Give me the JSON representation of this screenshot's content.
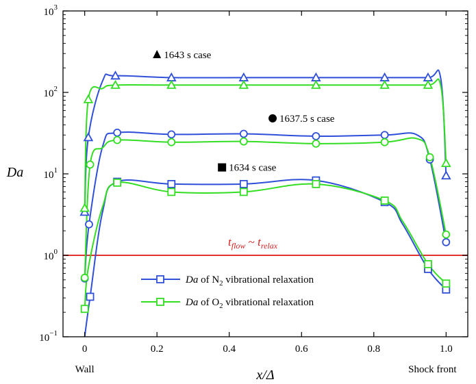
{
  "chart_data": {
    "type": "line",
    "xlabel": "x/Δ",
    "ylabel": "Da",
    "yscale": "log",
    "xlim": [
      -0.06,
      1.06
    ],
    "ylim": [
      0.1,
      1000
    ],
    "grid": false,
    "legend_position": "lower-center",
    "x_ticks": [
      {
        "value": 0.0,
        "label": "0"
      },
      {
        "value": 0.2,
        "label": "0.2"
      },
      {
        "value": 0.4,
        "label": "0.4"
      },
      {
        "value": 0.6,
        "label": "0.6"
      },
      {
        "value": 0.8,
        "label": "0.8"
      },
      {
        "value": 1.0,
        "label": "1.0"
      }
    ],
    "y_ticks": [
      {
        "value": 0.1,
        "base": "10",
        "exp": "−1"
      },
      {
        "value": 1,
        "base": "10",
        "exp": "0"
      },
      {
        "value": 10,
        "base": "10",
        "exp": "1"
      },
      {
        "value": 100,
        "base": "10",
        "exp": "2"
      },
      {
        "value": 1000,
        "base": "10",
        "exp": "3"
      }
    ],
    "x_end_labels": {
      "left": "Wall",
      "right": "Shock front"
    },
    "reference_line": {
      "y": 1.0,
      "label_main_1": "t",
      "label_sub_1": "flow",
      "label_mid": " ~ ",
      "label_main_2": "t",
      "label_sub_2": "relax",
      "color": "#e03030"
    },
    "legend": [
      {
        "label_pre": "Da",
        "label_mid": " of N",
        "label_sub": "2",
        "label_post": " vibrational relaxation",
        "color": "#2f4fd8",
        "marker": "square"
      },
      {
        "label_pre": "Da",
        "label_mid": " of O",
        "label_sub": "2",
        "label_post": " vibrational relaxation",
        "color": "#33dd22",
        "marker": "square"
      }
    ],
    "annotations": [
      {
        "text": "1643 s case",
        "symbol": "triangle",
        "x": 0.2,
        "y": 290
      },
      {
        "text": "1637.5 s case",
        "symbol": "circle",
        "x": 0.52,
        "y": 48
      },
      {
        "text": "1634 s case",
        "symbol": "square",
        "x": 0.38,
        "y": 12
      }
    ],
    "series": [
      {
        "species": "N2",
        "case": "1643 s",
        "color": "#2f4fd8",
        "marker": "triangle",
        "x": [
          0,
          0.01,
          0.05,
          0.085,
          0.24,
          0.44,
          0.64,
          0.83,
          0.95,
          0.985,
          1.0
        ],
        "y": [
          3.4,
          28,
          140,
          160,
          152,
          152,
          152,
          152,
          152,
          150,
          9.5
        ],
        "markers_x": [
          0,
          0.01,
          0.085,
          0.24,
          0.44,
          0.64,
          0.83,
          0.95,
          1.0
        ],
        "markers_y": [
          3.4,
          28,
          160,
          152,
          152,
          152,
          152,
          152,
          9.5
        ]
      },
      {
        "species": "O2",
        "case": "1643 s",
        "color": "#33dd22",
        "marker": "triangle",
        "x": [
          0,
          0.01,
          0.05,
          0.085,
          0.24,
          0.44,
          0.64,
          0.83,
          0.95,
          0.985,
          1.0
        ],
        "y": [
          3.8,
          82,
          112,
          123,
          123,
          123,
          123,
          123,
          123,
          122,
          13.5
        ],
        "markers_x": [
          0,
          0.01,
          0.085,
          0.24,
          0.44,
          0.64,
          0.83,
          0.95,
          1.0
        ],
        "markers_y": [
          3.8,
          82,
          123,
          123,
          123,
          123,
          123,
          123,
          13.5
        ]
      },
      {
        "species": "N2",
        "case": "1637.5 s",
        "color": "#2f4fd8",
        "marker": "circle",
        "x": [
          0,
          0.012,
          0.05,
          0.09,
          0.24,
          0.44,
          0.64,
          0.83,
          0.92,
          0.955,
          1.0
        ],
        "y": [
          0.52,
          2.4,
          22,
          32,
          30.5,
          31,
          29,
          30,
          30,
          15,
          1.45
        ],
        "markers_x": [
          0,
          0.012,
          0.09,
          0.24,
          0.44,
          0.64,
          0.83,
          0.955,
          1.0
        ],
        "markers_y": [
          0.52,
          2.4,
          32,
          30.5,
          31,
          29,
          30,
          15,
          1.45
        ]
      },
      {
        "species": "O2",
        "case": "1637.5 s",
        "color": "#33dd22",
        "marker": "circle",
        "x": [
          0,
          0.015,
          0.05,
          0.09,
          0.24,
          0.44,
          0.64,
          0.83,
          0.92,
          0.955,
          1.0
        ],
        "y": [
          0.53,
          13,
          21,
          26,
          24.5,
          25,
          23.5,
          24.5,
          27,
          16,
          1.8
        ],
        "markers_x": [
          0,
          0.015,
          0.09,
          0.24,
          0.44,
          0.64,
          0.83,
          0.955,
          1.0
        ],
        "markers_y": [
          0.53,
          13,
          26,
          24.5,
          25,
          23.5,
          24.5,
          16,
          1.8
        ]
      },
      {
        "species": "N2",
        "case": "1634 s",
        "color": "#2f4fd8",
        "marker": "square",
        "x": [
          0,
          0.015,
          0.05,
          0.09,
          0.24,
          0.44,
          0.64,
          0.83,
          0.88,
          0.95,
          1.0
        ],
        "y": [
          0.1,
          0.31,
          3.5,
          8,
          7.5,
          7.5,
          8.3,
          4.5,
          2.4,
          0.68,
          0.38
        ],
        "markers_x": [
          0.015,
          0.09,
          0.24,
          0.44,
          0.64,
          0.83,
          0.95,
          1.0
        ],
        "markers_y": [
          0.31,
          8,
          7.5,
          7.5,
          8.3,
          4.5,
          0.68,
          0.38
        ]
      },
      {
        "species": "O2",
        "case": "1634 s",
        "color": "#33dd22",
        "marker": "square",
        "x": [
          0,
          0.01,
          0.05,
          0.09,
          0.24,
          0.44,
          0.64,
          0.83,
          0.88,
          0.95,
          1.0
        ],
        "y": [
          0.22,
          0.7,
          4.0,
          7.8,
          6.0,
          6.0,
          7.5,
          4.7,
          2.6,
          0.78,
          0.45
        ],
        "markers_x": [
          0,
          0.09,
          0.24,
          0.44,
          0.64,
          0.83,
          0.95,
          1.0
        ],
        "markers_y": [
          0.22,
          7.8,
          6.0,
          6.0,
          7.5,
          4.7,
          0.78,
          0.45
        ]
      }
    ]
  }
}
